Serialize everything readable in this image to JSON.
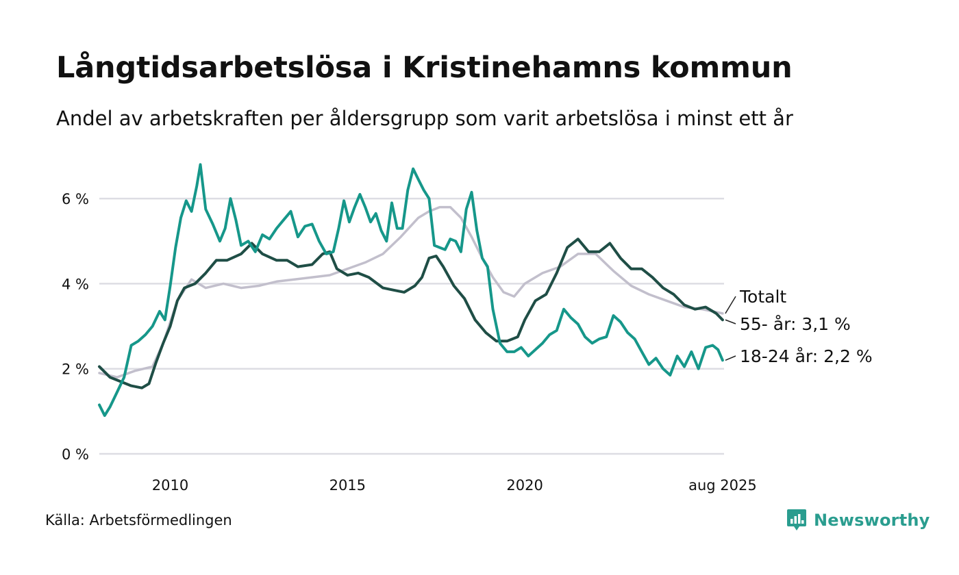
{
  "header": {
    "title": "Långtidsarbetslösa i Kristinehamns kommun",
    "subtitle": "Andel av arbetskraften per åldersgrupp som varit arbetslösa i minst ett år"
  },
  "footer": {
    "source": "Källa: Arbetsförmedlingen",
    "brand": "Newsworthy"
  },
  "colors": {
    "total": "#c2bfcc",
    "age55": "#1f4e46",
    "age18_24": "#16978a",
    "grid": "#dddde3",
    "brand": "#2a9d8f"
  },
  "chart_data": {
    "type": "line",
    "title": "Långtidsarbetslösa i Kristinehamns kommun",
    "subtitle": "Andel av arbetskraften per åldersgrupp som varit arbetslösa i minst ett år",
    "xlim": [
      2008.0,
      2025.62
    ],
    "ylim": [
      0,
      7
    ],
    "y_ticks": [
      0,
      2,
      4,
      6
    ],
    "y_tick_labels": [
      "0 %",
      "2 %",
      "4 %",
      "6 %"
    ],
    "x_ticks": [
      2010,
      2015,
      2020,
      2025.58
    ],
    "x_tick_labels": [
      "2010",
      "2015",
      "2020",
      "aug 2025"
    ],
    "grid": true,
    "series": [
      {
        "name": "Totalt",
        "end_label": "Totalt",
        "color": "#c2bfcc",
        "x": [
          2008.0,
          2008.5,
          2009.0,
          2009.5,
          2009.8,
          2010.2,
          2010.6,
          2011.0,
          2011.5,
          2012.0,
          2012.5,
          2013.0,
          2013.5,
          2014.0,
          2014.5,
          2015.0,
          2015.5,
          2016.0,
          2016.5,
          2017.0,
          2017.3,
          2017.6,
          2017.9,
          2018.2,
          2018.5,
          2018.8,
          2019.1,
          2019.4,
          2019.7,
          2020.0,
          2020.5,
          2021.0,
          2021.5,
          2022.0,
          2022.5,
          2023.0,
          2023.5,
          2024.0,
          2024.5,
          2025.0,
          2025.58
        ],
        "values": [
          1.9,
          1.8,
          1.95,
          2.05,
          2.6,
          3.6,
          4.1,
          3.9,
          4.0,
          3.9,
          3.95,
          4.05,
          4.1,
          4.15,
          4.2,
          4.35,
          4.5,
          4.7,
          5.1,
          5.55,
          5.7,
          5.8,
          5.8,
          5.55,
          5.1,
          4.6,
          4.15,
          3.8,
          3.7,
          4.0,
          4.25,
          4.4,
          4.7,
          4.7,
          4.3,
          3.95,
          3.75,
          3.6,
          3.45,
          3.4,
          3.3
        ]
      },
      {
        "name": "55- år",
        "end_label": "55- år: 3,1 %",
        "color": "#1f4e46",
        "x": [
          2008.0,
          2008.3,
          2008.6,
          2008.9,
          2009.2,
          2009.4,
          2009.6,
          2009.8,
          2010.0,
          2010.2,
          2010.4,
          2010.7,
          2011.0,
          2011.3,
          2011.6,
          2012.0,
          2012.3,
          2012.6,
          2013.0,
          2013.3,
          2013.6,
          2014.0,
          2014.3,
          2014.5,
          2014.7,
          2015.0,
          2015.3,
          2015.6,
          2016.0,
          2016.3,
          2016.6,
          2016.9,
          2017.1,
          2017.3,
          2017.5,
          2017.7,
          2018.0,
          2018.3,
          2018.6,
          2018.9,
          2019.2,
          2019.5,
          2019.8,
          2020.0,
          2020.3,
          2020.6,
          2020.9,
          2021.2,
          2021.5,
          2021.8,
          2022.1,
          2022.4,
          2022.7,
          2023.0,
          2023.3,
          2023.6,
          2023.9,
          2024.2,
          2024.5,
          2024.8,
          2025.1,
          2025.4,
          2025.58
        ],
        "values": [
          2.05,
          1.8,
          1.7,
          1.6,
          1.55,
          1.65,
          2.15,
          2.6,
          3.0,
          3.6,
          3.9,
          4.0,
          4.25,
          4.55,
          4.55,
          4.7,
          4.95,
          4.7,
          4.55,
          4.55,
          4.4,
          4.45,
          4.7,
          4.75,
          4.35,
          4.2,
          4.25,
          4.15,
          3.9,
          3.85,
          3.8,
          3.95,
          4.15,
          4.6,
          4.65,
          4.4,
          3.95,
          3.65,
          3.15,
          2.85,
          2.65,
          2.65,
          2.75,
          3.15,
          3.6,
          3.75,
          4.25,
          4.85,
          5.05,
          4.75,
          4.75,
          4.95,
          4.6,
          4.35,
          4.35,
          4.15,
          3.9,
          3.75,
          3.5,
          3.4,
          3.45,
          3.3,
          3.15
        ]
      },
      {
        "name": "18-24 år",
        "end_label": "18-24 år: 2,2 %",
        "color": "#16978a",
        "x": [
          2008.0,
          2008.15,
          2008.3,
          2008.5,
          2008.7,
          2008.9,
          2009.1,
          2009.3,
          2009.5,
          2009.7,
          2009.85,
          2010.0,
          2010.15,
          2010.3,
          2010.45,
          2010.6,
          2010.75,
          2010.85,
          2011.0,
          2011.2,
          2011.4,
          2011.55,
          2011.7,
          2011.85,
          2012.0,
          2012.2,
          2012.4,
          2012.6,
          2012.8,
          2013.0,
          2013.2,
          2013.4,
          2013.6,
          2013.8,
          2014.0,
          2014.2,
          2014.4,
          2014.6,
          2014.75,
          2014.9,
          2015.05,
          2015.2,
          2015.35,
          2015.5,
          2015.65,
          2015.8,
          2015.95,
          2016.1,
          2016.25,
          2016.4,
          2016.55,
          2016.7,
          2016.85,
          2017.0,
          2017.15,
          2017.3,
          2017.45,
          2017.6,
          2017.75,
          2017.9,
          2018.05,
          2018.2,
          2018.35,
          2018.5,
          2018.65,
          2018.8,
          2018.95,
          2019.1,
          2019.3,
          2019.5,
          2019.7,
          2019.9,
          2020.1,
          2020.3,
          2020.5,
          2020.7,
          2020.9,
          2021.1,
          2021.3,
          2021.5,
          2021.7,
          2021.9,
          2022.1,
          2022.3,
          2022.5,
          2022.7,
          2022.9,
          2023.1,
          2023.3,
          2023.5,
          2023.7,
          2023.9,
          2024.1,
          2024.3,
          2024.5,
          2024.7,
          2024.9,
          2025.1,
          2025.3,
          2025.45,
          2025.58
        ],
        "values": [
          1.15,
          0.9,
          1.1,
          1.45,
          1.8,
          2.55,
          2.65,
          2.8,
          3.0,
          3.35,
          3.15,
          3.95,
          4.85,
          5.55,
          5.95,
          5.7,
          6.3,
          6.8,
          5.75,
          5.4,
          5.0,
          5.3,
          6.0,
          5.5,
          4.9,
          5.0,
          4.75,
          5.15,
          5.05,
          5.3,
          5.5,
          5.7,
          5.1,
          5.35,
          5.4,
          5.0,
          4.7,
          4.75,
          5.3,
          5.95,
          5.45,
          5.8,
          6.1,
          5.8,
          5.45,
          5.65,
          5.25,
          5.0,
          5.9,
          5.3,
          5.3,
          6.2,
          6.7,
          6.45,
          6.2,
          6.0,
          4.9,
          4.85,
          4.8,
          5.05,
          5.0,
          4.75,
          5.75,
          6.15,
          5.25,
          4.6,
          4.4,
          3.4,
          2.6,
          2.4,
          2.4,
          2.5,
          2.3,
          2.45,
          2.6,
          2.8,
          2.9,
          3.4,
          3.2,
          3.05,
          2.75,
          2.6,
          2.7,
          2.75,
          3.25,
          3.1,
          2.85,
          2.7,
          2.4,
          2.1,
          2.25,
          2.0,
          1.85,
          2.3,
          2.05,
          2.4,
          2.0,
          2.5,
          2.55,
          2.45,
          2.2
        ]
      }
    ]
  }
}
